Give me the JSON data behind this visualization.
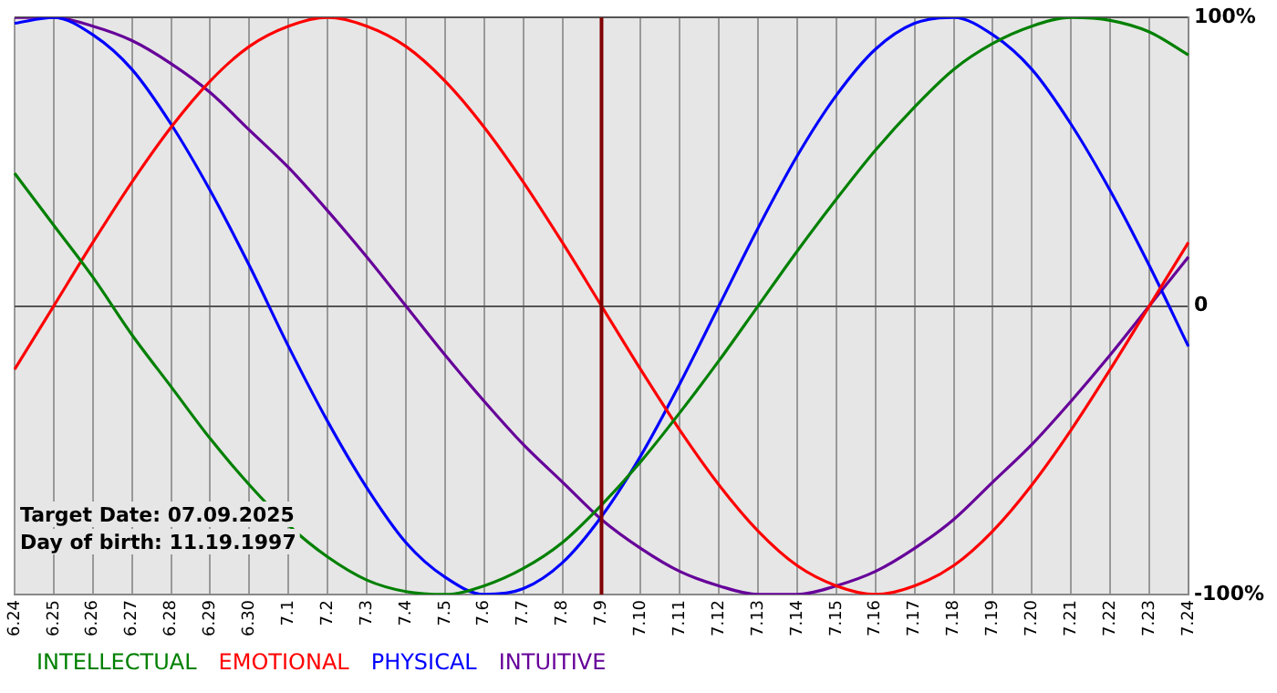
{
  "chart_data": {
    "type": "line",
    "categories": [
      "6.24",
      "6.25",
      "6.26",
      "6.27",
      "6.28",
      "6.29",
      "6.30",
      "7.1",
      "7.2",
      "7.3",
      "7.4",
      "7.5",
      "7.6",
      "7.7",
      "7.8",
      "7.9",
      "7.10",
      "7.11",
      "7.12",
      "7.13",
      "7.14",
      "7.15",
      "7.16",
      "7.17",
      "7.18",
      "7.19",
      "7.20",
      "7.21",
      "7.22",
      "7.23",
      "7.24"
    ],
    "series": [
      {
        "name": "INTELLECTUAL",
        "color": "#008000",
        "values": [
          46,
          28,
          10,
          -10,
          -28,
          -46,
          -62,
          -76,
          -87,
          -95,
          -99,
          -100,
          -97,
          -91,
          -82,
          -69,
          -54,
          -37,
          -19,
          0,
          19,
          37,
          54,
          69,
          82,
          91,
          97,
          100,
          99,
          95,
          87
        ]
      },
      {
        "name": "EMOTIONAL",
        "color": "#ff0000",
        "values": [
          -22,
          0,
          22,
          43,
          62,
          78,
          90,
          97,
          100,
          97,
          90,
          78,
          62,
          43,
          22,
          0,
          -22,
          -43,
          -62,
          -78,
          -90,
          -97,
          -100,
          -97,
          -90,
          -78,
          -62,
          -43,
          -22,
          0,
          22
        ]
      },
      {
        "name": "PHYSICAL",
        "color": "#0000ff",
        "values": [
          98,
          100,
          94,
          82,
          63,
          40,
          14,
          -14,
          -40,
          -63,
          -82,
          -94,
          -100,
          -98,
          -89,
          -73,
          -52,
          -27,
          0,
          27,
          52,
          73,
          89,
          98,
          100,
          94,
          82,
          63,
          40,
          14,
          -14
        ]
      },
      {
        "name": "INTUITIVE",
        "color": "#660099",
        "values": [
          100,
          100,
          97,
          92,
          84,
          74,
          61,
          48,
          33,
          17,
          0,
          -17,
          -33,
          -48,
          -61,
          -74,
          -84,
          -92,
          -97,
          -100,
          -100,
          -97,
          -92,
          -84,
          -74,
          -61,
          -48,
          -33,
          -17,
          0,
          17
        ]
      }
    ],
    "ylim": [
      -100,
      100
    ],
    "yticks": [
      {
        "value": 100,
        "label": "100%"
      },
      {
        "value": 0,
        "label": "0"
      },
      {
        "value": -100,
        "label": "-100%"
      }
    ],
    "ref_lines": [
      {
        "axis": "x",
        "value": "7.9",
        "color": "#800000"
      }
    ],
    "annotations": [
      "Target Date: 07.09.2025",
      "Day of birth: 11.19.1997"
    ],
    "grid": true,
    "legend": "bottom",
    "marker": "none",
    "line_style": "solid"
  }
}
